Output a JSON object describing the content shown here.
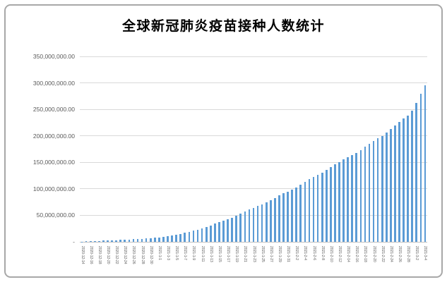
{
  "frame": {
    "border_color": "#A8A8A8",
    "background": "#FFFFFF"
  },
  "chart_data": {
    "type": "bar",
    "title": "全球新冠肺炎疫苗接种人数统计",
    "xlabel": "",
    "ylabel": "",
    "legend": "none",
    "grid": true,
    "bar_color": "#5B9BD5",
    "gridline_color": "#D9D9D9",
    "axis_line_color": "#BFBFBF",
    "tick_text_color": "#595959",
    "title_color": "#000000",
    "ylim": [
      0,
      350000000
    ],
    "x_label_every": 2,
    "y_ticks": [
      {
        "value": 0,
        "label": "-"
      },
      {
        "value": 50000000,
        "label": "50,000,000.00"
      },
      {
        "value": 100000000,
        "label": "100,000,000.00"
      },
      {
        "value": 150000000,
        "label": "150,000,000.00"
      },
      {
        "value": 200000000,
        "label": "200,000,000.00"
      },
      {
        "value": 250000000,
        "label": "250,000,000.00"
      },
      {
        "value": 300000000,
        "label": "300,000,000.00"
      },
      {
        "value": 350000000,
        "label": "350,000,000.00"
      }
    ],
    "x": [
      "2020-12-14",
      "2020-12-15",
      "2020-12-16",
      "2020-12-17",
      "2020-12-18",
      "2020-12-19",
      "2020-12-20",
      "2020-12-21",
      "2020-12-22",
      "2020-12-23",
      "2020-12-24",
      "2020-12-25",
      "2020-12-26",
      "2020-12-27",
      "2020-12-28",
      "2020-12-29",
      "2020-12-30",
      "2020-12-31",
      "2021-1-1",
      "2021-1-2",
      "2021-1-3",
      "2021-1-4",
      "2021-1-5",
      "2021-1-6",
      "2021-1-7",
      "2021-1-8",
      "2021-1-9",
      "2021-1-10",
      "2021-1-11",
      "2021-1-12",
      "2021-1-13",
      "2021-1-14",
      "2021-1-15",
      "2021-1-16",
      "2021-1-17",
      "2021-1-18",
      "2021-1-19",
      "2021-1-20",
      "2021-1-21",
      "2021-1-22",
      "2021-1-23",
      "2021-1-24",
      "2021-1-25",
      "2021-1-26",
      "2021-1-27",
      "2021-1-28",
      "2021-1-29",
      "2021-1-30",
      "2021-1-31",
      "2021-2-1",
      "2021-2-2",
      "2021-2-3",
      "2021-2-4",
      "2021-2-5",
      "2021-2-6",
      "2021-2-7",
      "2021-2-8",
      "2021-2-9",
      "2021-2-10",
      "2021-2-11",
      "2021-2-12",
      "2021-2-13",
      "2021-2-14",
      "2021-2-15",
      "2021-2-16",
      "2021-2-17",
      "2021-2-18",
      "2021-2-19",
      "2021-2-20",
      "2021-2-21",
      "2021-2-22",
      "2021-2-23",
      "2021-2-24",
      "2021-2-25",
      "2021-2-26",
      "2021-2-27",
      "2021-2-28",
      "2021-3-1",
      "2021-3-2",
      "2021-3-3",
      "2021-3-4"
    ],
    "values": [
      300000,
      700000,
      1100000,
      1400000,
      1800000,
      2100000,
      2500000,
      2900000,
      3200000,
      3600000,
      4000000,
      4300000,
      4700000,
      5100000,
      5500000,
      6100000,
      6800000,
      7600000,
      8400000,
      9300000,
      10200000,
      11400000,
      12900000,
      14700000,
      16700000,
      18900000,
      21100000,
      23300000,
      25700000,
      28300000,
      31200000,
      34300000,
      37400000,
      40300000,
      43000000,
      45800000,
      49000000,
      52700000,
      56700000,
      60600000,
      64200000,
      67300000,
      70500000,
      74100000,
      78200000,
      82700000,
      87200000,
      91400000,
      95000000,
      98600000,
      103000000,
      107700000,
      112700000,
      117800000,
      122700000,
      126800000,
      131000000,
      135800000,
      141000000,
      146200000,
      151000000,
      155400000,
      159200000,
      163300000,
      168100000,
      173600000,
      179300000,
      185100000,
      190500000,
      195300000,
      200200000,
      205800000,
      212300000,
      219200000,
      226300000,
      232700000,
      238000000,
      248000000,
      262000000,
      280000000,
      295800000
    ]
  }
}
